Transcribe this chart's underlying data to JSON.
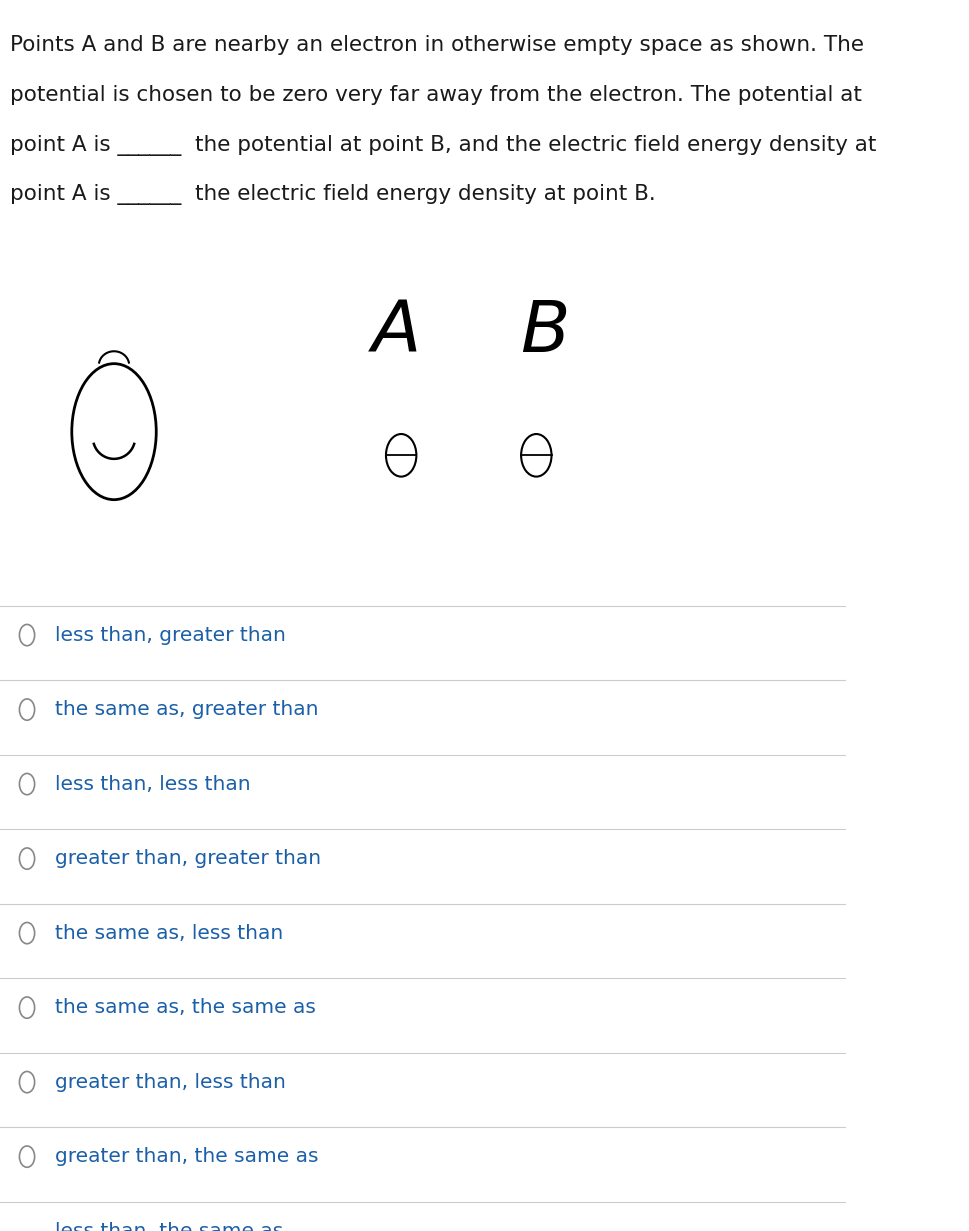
{
  "question_text_lines": [
    "Points A and B are nearby an electron in otherwise empty space as shown. The",
    "potential is chosen to be zero very far away from the electron. The potential at",
    "point A is ______  the potential at point B, and the electric field energy density at",
    "point A is ______  the electric field energy density at point B."
  ],
  "options": [
    "less than, greater than",
    "the same as, greater than",
    "less than, less than",
    "greater than, greater than",
    "the same as, less than",
    "the same as, the same as",
    "greater than, less than",
    "greater than, the same as",
    "less than, the same as"
  ],
  "bg_color": "#ffffff",
  "text_color": "#1a1a1a",
  "option_text_color": "#1a5fa8",
  "separator_color": "#cccccc",
  "question_fontsize": 15.5,
  "option_fontsize": 14.5,
  "figure_width": 9.69,
  "figure_height": 12.31
}
